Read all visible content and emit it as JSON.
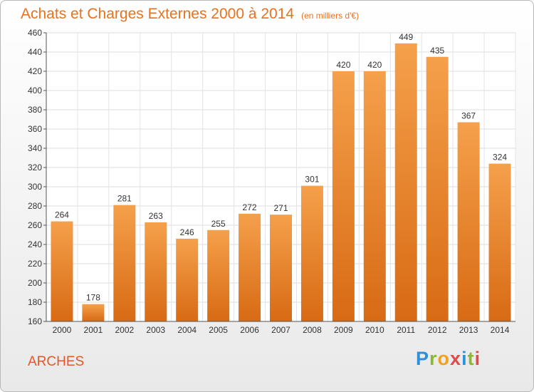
{
  "chart_data": {
    "type": "bar",
    "title": "Achats et Charges Externes 2000 à 2014",
    "subtitle": "(en milliers d'€)",
    "categories": [
      "2000",
      "2001",
      "2002",
      "2003",
      "2004",
      "2005",
      "2006",
      "2007",
      "2008",
      "2009",
      "2010",
      "2011",
      "2012",
      "2013",
      "2014"
    ],
    "values": [
      264,
      178,
      281,
      263,
      246,
      255,
      272,
      271,
      301,
      420,
      420,
      449,
      435,
      367,
      324
    ],
    "ylim": [
      160,
      460
    ],
    "yticks": [
      160,
      180,
      200,
      220,
      240,
      260,
      280,
      300,
      320,
      340,
      360,
      380,
      400,
      420,
      440,
      460
    ],
    "grid": true,
    "xlabel": "",
    "ylabel": ""
  },
  "place_name": "ARCHES",
  "logo": {
    "text": "Proxiti",
    "colors": [
      "#2f8fd8",
      "#8ab832",
      "#f0a21e",
      "#e04a4a",
      "#2f8fd8",
      "#8ab832",
      "#e04a4a"
    ]
  },
  "colors": {
    "title": "#e8721e",
    "bar_top": "#f5a04b",
    "bar_bottom": "#d86a14",
    "place": "#e05a28"
  }
}
